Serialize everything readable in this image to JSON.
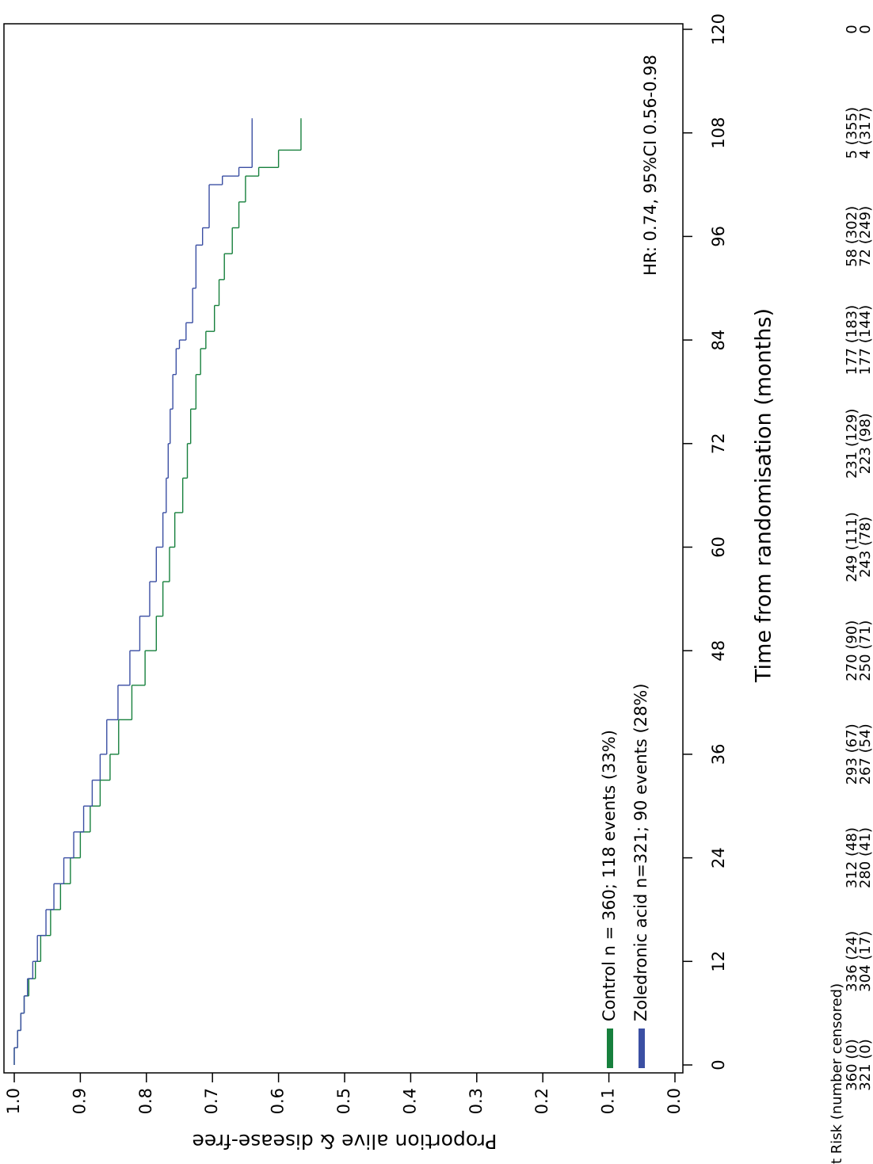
{
  "chart_data": {
    "type": "km",
    "ylabel": "Proportion alive & disease-free",
    "xlabel": "Time from randomisation (months)",
    "annotation": "HR: 0.74, 95%CI 0.56-0.98",
    "xlim": [
      0,
      120
    ],
    "xticks": [
      0,
      12,
      24,
      36,
      48,
      60,
      72,
      84,
      96,
      108,
      120
    ],
    "ylim": [
      0,
      1
    ],
    "yticks": [
      {
        "value": 1,
        "label": "1.0"
      },
      0.9,
      0.8,
      0.7,
      0.6,
      0.5,
      0.4,
      0.3,
      0.2,
      0.1,
      {
        "value": 0,
        "label": "0.0"
      }
    ],
    "series": [
      {
        "name": "Control n = 360; 118 events (33%)",
        "color": "#17803d",
        "x": [
          0,
          2,
          4,
          6,
          8,
          10,
          12,
          15,
          18,
          21,
          24,
          27,
          30,
          33,
          36,
          40,
          44,
          48,
          52,
          56,
          60,
          64,
          68,
          72,
          76,
          80,
          83,
          85,
          88,
          91,
          94,
          97,
          100,
          103,
          104,
          106,
          109.6
        ],
        "values": [
          1.0,
          0.995,
          0.99,
          0.985,
          0.978,
          0.968,
          0.96,
          0.945,
          0.93,
          0.915,
          0.9,
          0.885,
          0.87,
          0.855,
          0.842,
          0.822,
          0.802,
          0.785,
          0.775,
          0.765,
          0.757,
          0.745,
          0.738,
          0.733,
          0.725,
          0.718,
          0.71,
          0.697,
          0.69,
          0.682,
          0.67,
          0.66,
          0.65,
          0.63,
          0.6,
          0.566,
          0.566
        ]
      },
      {
        "name": "Zoledronic acid n=321; 90 events (28%)",
        "color": "#3b4fa3",
        "x": [
          0,
          2,
          4,
          6,
          8,
          10,
          12,
          15,
          18,
          21,
          24,
          27,
          30,
          33,
          36,
          40,
          44,
          48,
          52,
          56,
          60,
          64,
          68,
          72,
          76,
          80,
          83,
          84,
          86,
          90,
          95,
          97,
          102,
          103,
          104,
          109.6
        ],
        "values": [
          1.0,
          0.995,
          0.99,
          0.985,
          0.98,
          0.972,
          0.965,
          0.952,
          0.94,
          0.925,
          0.91,
          0.895,
          0.882,
          0.87,
          0.86,
          0.843,
          0.825,
          0.81,
          0.795,
          0.785,
          0.775,
          0.77,
          0.767,
          0.764,
          0.76,
          0.755,
          0.75,
          0.74,
          0.73,
          0.725,
          0.715,
          0.705,
          0.685,
          0.66,
          0.64,
          0.64
        ]
      }
    ],
    "at_risk": {
      "title": "At Risk (number censored)",
      "rows": [
        [
          "360 (0)",
          "336 (24)",
          "312 (48)",
          "293 (67)",
          "270 (90)",
          "249 (111)",
          "231 (129)",
          "177 (183)",
          "58 (302)",
          "5 (355)",
          "0"
        ],
        [
          "321 (0)",
          "304 (17)",
          "280 (41)",
          "267 (54)",
          "250 (71)",
          "243 (78)",
          "223 (98)",
          "177 (144)",
          "72 (249)",
          "4 (317)",
          "0"
        ]
      ]
    }
  }
}
